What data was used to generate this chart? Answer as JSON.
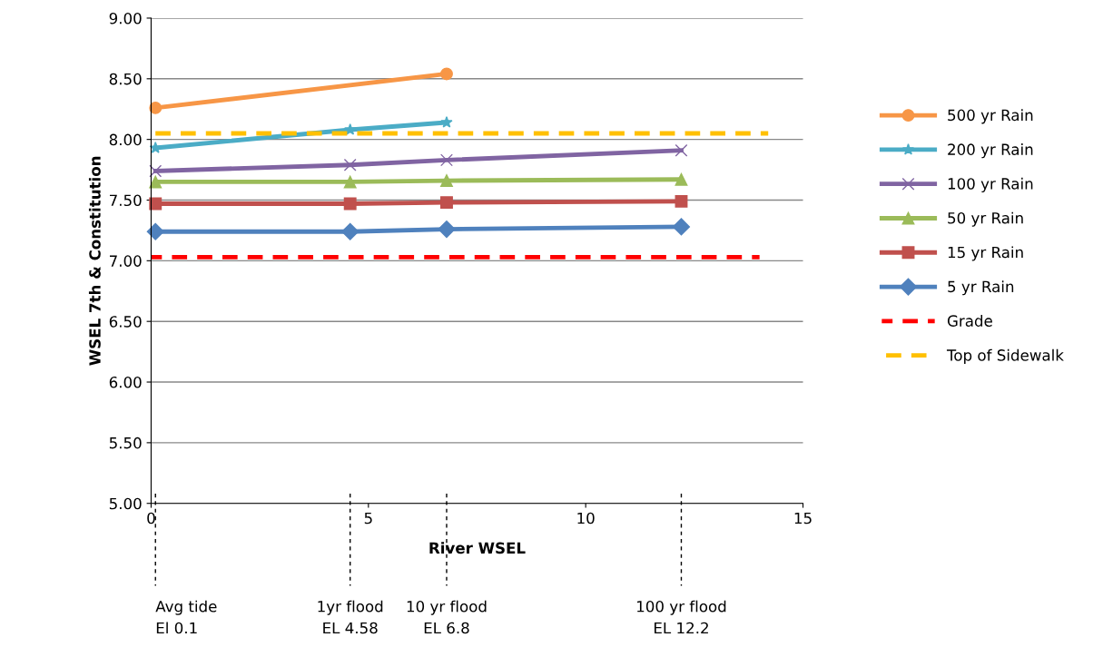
{
  "chart_data": {
    "type": "line",
    "xlabel": "River WSEL",
    "ylabel": "WSEL 7th & Constitution",
    "xlim": [
      0,
      15
    ],
    "xticks": [
      0,
      5,
      10,
      15
    ],
    "ylim": [
      5,
      9
    ],
    "yticks": [
      {
        "value": 5,
        "label": "5.00"
      },
      {
        "value": 5.5,
        "label": "5.50"
      },
      {
        "value": 6,
        "label": "6.00"
      },
      {
        "value": 6.5,
        "label": "6.50"
      },
      {
        "value": 7,
        "label": "7.00"
      },
      {
        "value": 7.5,
        "label": "7.50"
      },
      {
        "value": 8,
        "label": "8.00"
      },
      {
        "value": 8.5,
        "label": "8.50"
      },
      {
        "value": 9,
        "label": "9.00"
      }
    ],
    "grid": "y",
    "legend": "right",
    "series": [
      {
        "name": "500 yr Rain",
        "color": "#f79646",
        "marker": "circle",
        "x": [
          0.1,
          6.8
        ],
        "values": [
          8.26,
          8.54
        ]
      },
      {
        "name": "200 yr Rain",
        "color": "#4bacc6",
        "marker": "star",
        "x": [
          0.1,
          4.58,
          6.8
        ],
        "values": [
          7.93,
          8.08,
          8.14
        ]
      },
      {
        "name": "100 yr Rain",
        "color": "#8064a2",
        "marker": "cross",
        "x": [
          0.1,
          4.58,
          6.8,
          12.2
        ],
        "values": [
          7.74,
          7.79,
          7.83,
          7.91
        ]
      },
      {
        "name": "50 yr Rain",
        "color": "#9bbb59",
        "marker": "triangle",
        "x": [
          0.1,
          4.58,
          6.8,
          12.2
        ],
        "values": [
          7.65,
          7.65,
          7.66,
          7.67
        ]
      },
      {
        "name": "15 yr Rain",
        "color": "#c0504d",
        "marker": "square",
        "x": [
          0.1,
          4.58,
          6.8,
          12.2
        ],
        "values": [
          7.47,
          7.47,
          7.48,
          7.49
        ]
      },
      {
        "name": "5 yr Rain",
        "color": "#4f81bd",
        "marker": "diamond",
        "x": [
          0.1,
          4.58,
          6.8,
          12.2
        ],
        "values": [
          7.24,
          7.24,
          7.26,
          7.28
        ]
      },
      {
        "name": "Grade",
        "color": "#ff0000",
        "marker": "none",
        "line_style": "dashed",
        "x": [
          0,
          14
        ],
        "values": [
          7.03,
          7.03
        ]
      },
      {
        "name": "Top of Sidewalk",
        "color": "#ffc000",
        "marker": "none",
        "line_style": "dashed",
        "x": [
          0,
          14.2
        ],
        "values": [
          8.05,
          8.05
        ]
      }
    ],
    "ref_lines": [
      {
        "axis": "x",
        "value": 0.1,
        "label": "Avg tide\nEl 0.1",
        "color": "#000000",
        "line_style": "dashed"
      },
      {
        "axis": "x",
        "value": 4.58,
        "label": "1yr flood\nEL 4.58",
        "color": "#000000",
        "line_style": "dashed"
      },
      {
        "axis": "x",
        "value": 6.8,
        "label": "10 yr flood\nEL 6.8",
        "color": "#000000",
        "line_style": "dashed"
      },
      {
        "axis": "x",
        "value": 12.2,
        "label": "100 yr flood\nEL 12.2",
        "color": "#000000",
        "line_style": "dashed"
      }
    ]
  }
}
